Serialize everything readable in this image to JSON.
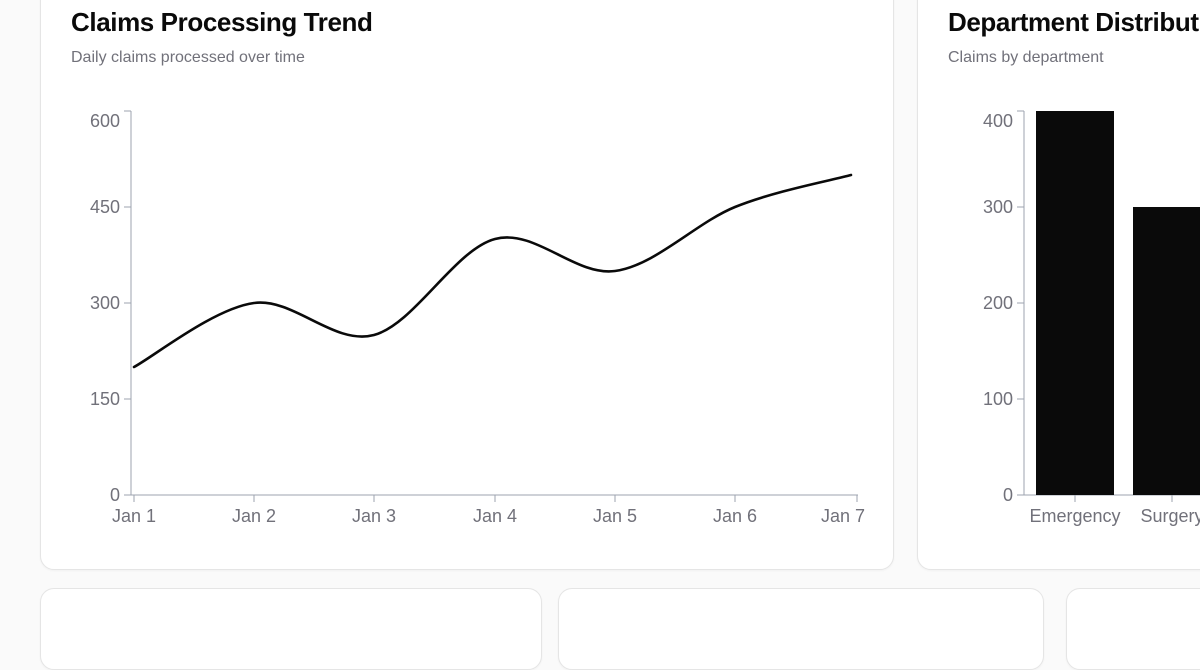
{
  "page": {
    "background": "#fafafa"
  },
  "cards": {
    "claims_trend": {
      "title": "Claims Processing Trend",
      "subtitle": "Daily claims processed over time"
    },
    "department_distribution": {
      "title": "Department Distribution",
      "subtitle": "Claims by department"
    }
  },
  "chart_data": [
    {
      "type": "line",
      "title": "Claims Processing Trend",
      "subtitle": "Daily claims processed over time",
      "x": [
        "Jan 1",
        "Jan 2",
        "Jan 3",
        "Jan 4",
        "Jan 5",
        "Jan 6",
        "Jan 7"
      ],
      "values": [
        200,
        300,
        250,
        400,
        350,
        450,
        500
      ],
      "xlabel": "",
      "ylabel": "",
      "ylim": [
        0,
        600
      ],
      "yticks": [
        0,
        150,
        300,
        450,
        600
      ],
      "grid": false,
      "legend": false,
      "curve": "natural",
      "line_color": "#0a0a0a",
      "axis_color": "#9ca3af",
      "tick_label_color": "#71717a"
    },
    {
      "type": "bar",
      "title": "Department Distribution",
      "subtitle": "Claims by department",
      "categories": [
        "Emergency",
        "Surgery"
      ],
      "values": [
        400,
        300
      ],
      "xlabel": "",
      "ylabel": "",
      "ylim": [
        0,
        400
      ],
      "yticks": [
        0,
        100,
        200,
        300,
        400
      ],
      "grid": false,
      "legend": false,
      "bar_color": "#0a0a0a",
      "axis_color": "#9ca3af",
      "tick_label_color": "#71717a"
    }
  ]
}
